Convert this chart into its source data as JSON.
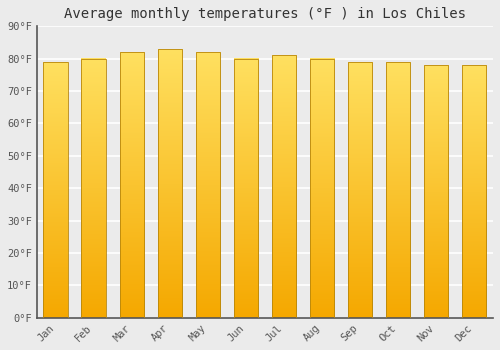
{
  "title": "Average monthly temperatures (°F ) in Los Chiles",
  "months": [
    "Jan",
    "Feb",
    "Mar",
    "Apr",
    "May",
    "Jun",
    "Jul",
    "Aug",
    "Sep",
    "Oct",
    "Nov",
    "Dec"
  ],
  "values": [
    79,
    80,
    82,
    83,
    82,
    80,
    81,
    80,
    79,
    79,
    78,
    78
  ],
  "bar_color_bottom": "#F5A800",
  "bar_color_top": "#FFE060",
  "bar_edge_color": "#B8860B",
  "ylim": [
    0,
    90
  ],
  "yticks": [
    0,
    10,
    20,
    30,
    40,
    50,
    60,
    70,
    80,
    90
  ],
  "ytick_labels": [
    "0°F",
    "10°F",
    "20°F",
    "30°F",
    "40°F",
    "50°F",
    "60°F",
    "70°F",
    "80°F",
    "90°F"
  ],
  "background_color": "#EBEBEB",
  "grid_color": "#FFFFFF",
  "title_fontsize": 10,
  "tick_fontsize": 7.5,
  "bar_width": 0.65,
  "left_spine_color": "#555555",
  "bottom_spine_color": "#555555"
}
